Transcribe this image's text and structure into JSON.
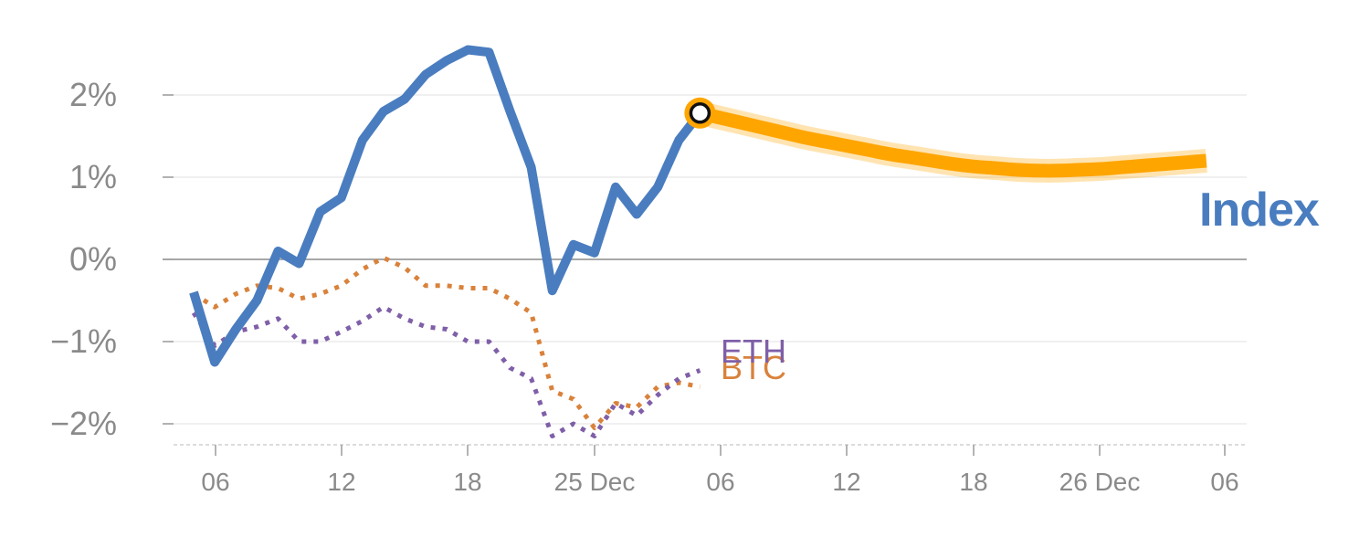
{
  "chart_data": {
    "type": "line",
    "y_unit": "%",
    "ylim": [
      -2.25,
      2.6
    ],
    "y_ticks": [
      2,
      1,
      0,
      -1,
      -2
    ],
    "y_tick_labels": [
      "2%",
      "1%",
      "0%",
      "−1%",
      "−2%"
    ],
    "x_tick_labels": [
      "06",
      "12",
      "18",
      "25 Dec",
      "06",
      "12",
      "18",
      "26 Dec",
      "06"
    ],
    "grid": "horizontal",
    "series": [
      {
        "name": "Index",
        "color": "#4a7dbf",
        "style": "solid",
        "values": [
          -0.4,
          -1.25,
          -0.85,
          -0.5,
          0.1,
          -0.05,
          0.58,
          0.75,
          1.45,
          1.8,
          1.95,
          2.25,
          2.42,
          2.55,
          2.52,
          1.8,
          1.12,
          -0.38,
          0.18,
          0.08,
          0.88,
          0.55,
          0.88,
          1.45,
          1.78
        ]
      },
      {
        "name": "BTC",
        "color": "#d9823b",
        "style": "dotted",
        "values": [
          -0.42,
          -0.58,
          -0.42,
          -0.32,
          -0.35,
          -0.48,
          -0.42,
          -0.32,
          -0.12,
          0.02,
          -0.1,
          -0.32,
          -0.32,
          -0.35,
          -0.35,
          -0.48,
          -0.65,
          -1.6,
          -1.7,
          -2.05,
          -1.75,
          -1.8,
          -1.55,
          -1.5,
          -1.55
        ]
      },
      {
        "name": "ETH",
        "color": "#7f5fa8",
        "style": "dotted",
        "values": [
          -0.65,
          -1.05,
          -0.88,
          -0.82,
          -0.72,
          -1.0,
          -1.0,
          -0.88,
          -0.75,
          -0.58,
          -0.72,
          -0.82,
          -0.85,
          -1.0,
          -1.0,
          -1.32,
          -1.45,
          -2.15,
          -2.0,
          -2.15,
          -1.75,
          -1.9,
          -1.65,
          -1.45,
          -1.35
        ]
      },
      {
        "name": "Index",
        "label_shown": false,
        "color": "#ffa500",
        "style": "forecast",
        "values": [
          1.78,
          1.72,
          1.66,
          1.6,
          1.54,
          1.48,
          1.43,
          1.38,
          1.33,
          1.28,
          1.24,
          1.2,
          1.16,
          1.13,
          1.11,
          1.09,
          1.08,
          1.08,
          1.09,
          1.1,
          1.12,
          1.14,
          1.16,
          1.18,
          1.2
        ]
      }
    ]
  }
}
